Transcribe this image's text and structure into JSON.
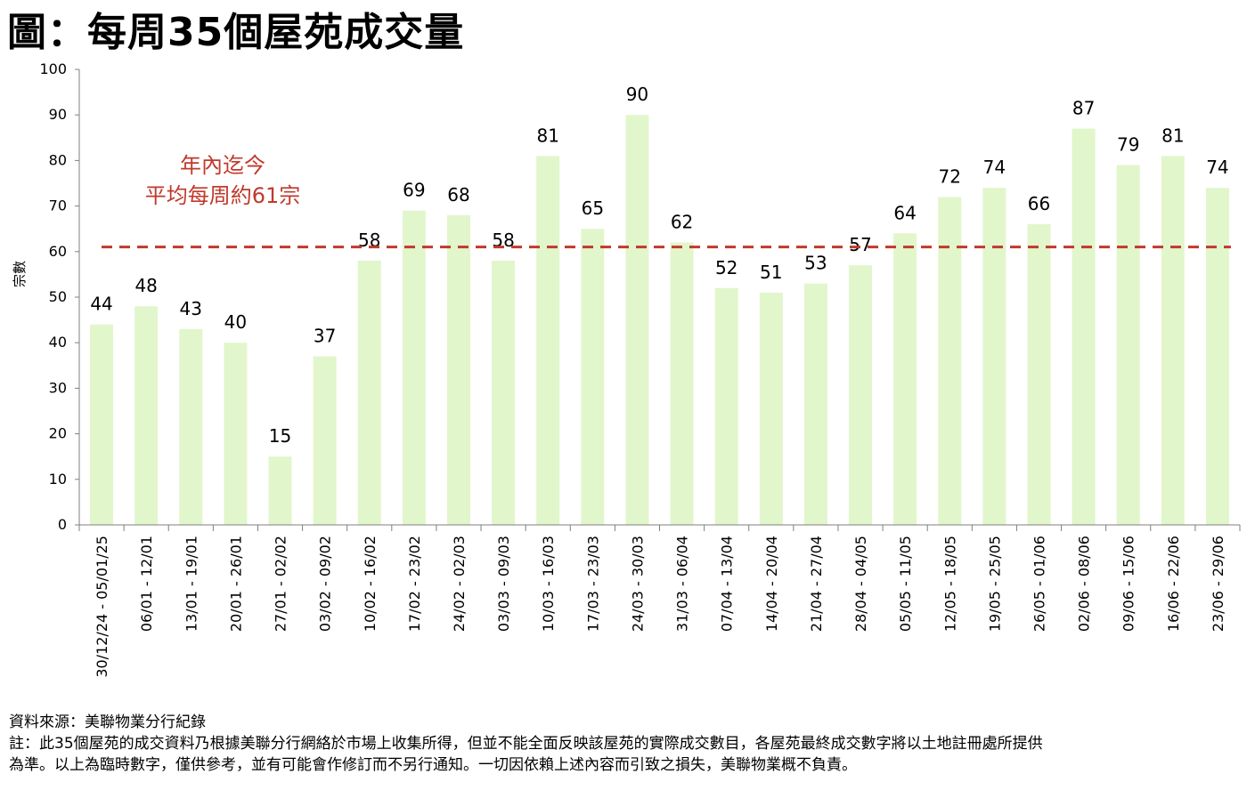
{
  "title": "圖：每周35個屋苑成交量",
  "chart_data": {
    "type": "bar",
    "ylabel": "宗數",
    "ylim": [
      0,
      100
    ],
    "yticks": [
      0,
      10,
      20,
      30,
      40,
      50,
      60,
      70,
      80,
      90,
      100
    ],
    "grid": false,
    "bar_color": "#e2f6cc",
    "avg_line_color": "#c0392b",
    "avg_value": 61,
    "annotation": [
      "年內迄今",
      "平均每周約61宗"
    ],
    "categories": [
      "30/12/24 - 05/01/25",
      "06/01 - 12/01",
      "13/01 - 19/01",
      "20/01 - 26/01",
      "27/01 - 02/02",
      "03/02 - 09/02",
      "10/02 - 16/02",
      "17/02 - 23/02",
      "24/02 - 02/03",
      "03/03 - 09/03",
      "10/03 - 16/03",
      "17/03 - 23/03",
      "24/03 - 30/03",
      "31/03 - 06/04",
      "07/04 - 13/04",
      "14/04 - 20/04",
      "21/04 - 27/04",
      "28/04 - 04/05",
      "05/05 - 11/05",
      "12/05 - 18/05",
      "19/05 - 25/05",
      "26/05 - 01/06",
      "02/06 - 08/06",
      "09/06 - 15/06",
      "16/06 - 22/06",
      "23/06 - 29/06"
    ],
    "values": [
      44,
      48,
      43,
      40,
      15,
      37,
      58,
      69,
      68,
      58,
      81,
      65,
      90,
      62,
      52,
      51,
      53,
      57,
      64,
      72,
      74,
      66,
      87,
      79,
      81,
      74
    ]
  },
  "footer": {
    "source": "資料來源：美聯物業分行紀錄",
    "note_line1": "註：此35個屋苑的成交資料乃根據美聯分行網絡於市場上收集所得，但並不能全面反映該屋苑的實際成交數目，各屋苑最終成交數字將以土地註冊處所提供",
    "note_line2": "為準。以上為臨時數字，僅供參考，並有可能會作修訂而不另行通知。一切因依賴上述內容而引致之損失，美聯物業概不負責。"
  }
}
